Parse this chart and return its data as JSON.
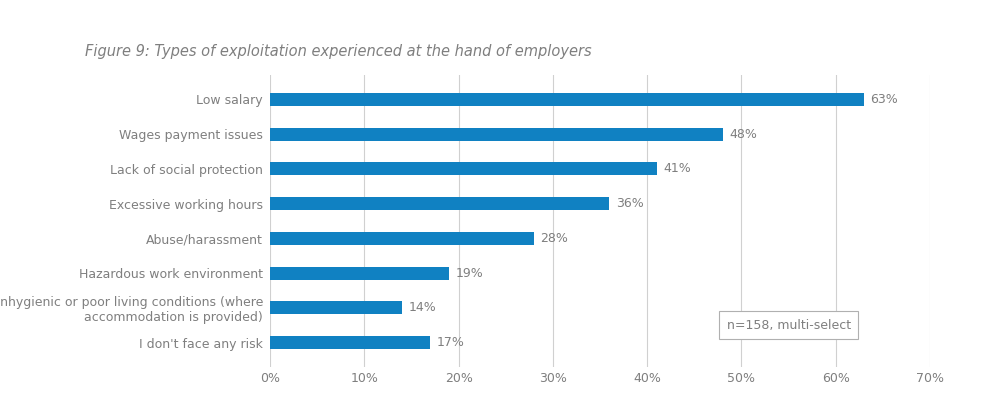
{
  "title_bold": "Figure 9: ",
  "title_rest": "Types of exploitation experienced at the hand of employers",
  "categories": [
    "Low salary",
    "Wages payment issues",
    "Lack of social protection",
    "Excessive working hours",
    "Abuse/harassment",
    "Hazardous work environment",
    "Unhygienic or poor living conditions (where\naccommodation is provided)",
    "I don't face any risk"
  ],
  "values": [
    63,
    48,
    41,
    36,
    28,
    19,
    14,
    17
  ],
  "bar_color": "#1081C2",
  "label_color": "#7f7f7f",
  "title_color": "#7f7f7f",
  "annotation_color": "#7f7f7f",
  "xlim": [
    0,
    70
  ],
  "xticks": [
    0,
    10,
    20,
    30,
    40,
    50,
    60,
    70
  ],
  "xtick_labels": [
    "0%",
    "10%",
    "20%",
    "30%",
    "40%",
    "50%",
    "60%",
    "70%"
  ],
  "annotation_note": "n=158, multi-select",
  "background_color": "#ffffff",
  "grid_color": "#d0d0d0",
  "title_fontsize": 10.5,
  "label_fontsize": 9,
  "tick_fontsize": 9,
  "value_fontsize": 9
}
